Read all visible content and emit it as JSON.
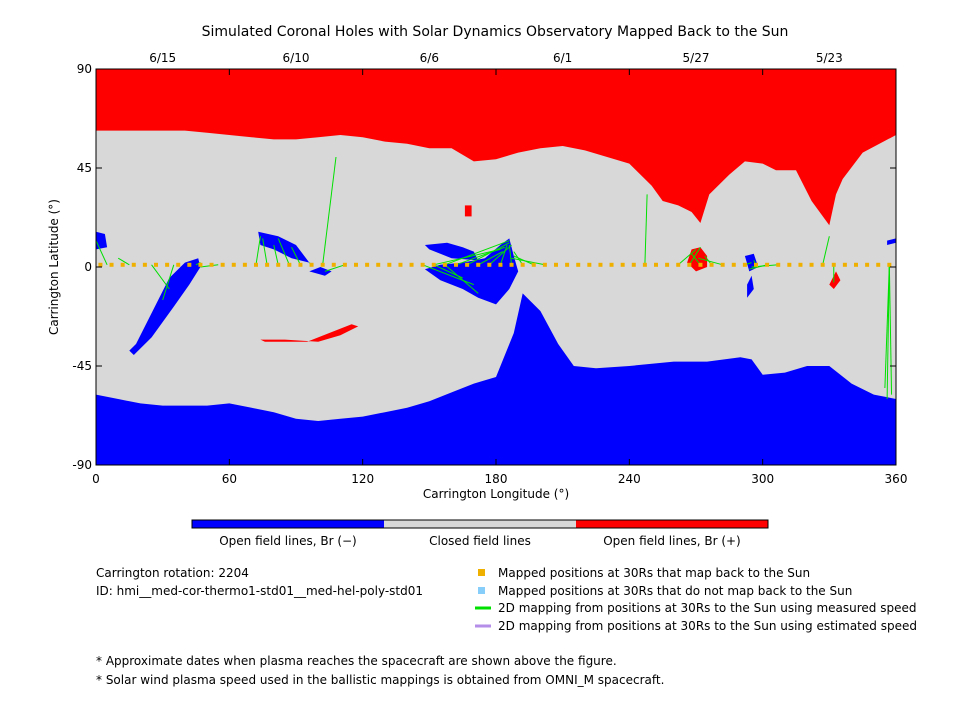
{
  "chart_data": {
    "type": "map",
    "title": "Simulated Coronal Holes with Solar Dynamics Observatory Mapped Back to the Sun",
    "xlabel": "Carrington Longitude (°)",
    "ylabel": "Carrington Latitude (°)",
    "xlim": [
      0,
      360
    ],
    "ylim": [
      -90,
      90
    ],
    "x_ticks": [
      "0",
      "60",
      "120",
      "180",
      "240",
      "300",
      "360"
    ],
    "x_tick_values": [
      0,
      60,
      120,
      180,
      240,
      300,
      360
    ],
    "y_ticks": [
      "90",
      "45",
      "0",
      "-45",
      "-90"
    ],
    "y_tick_values": [
      90,
      45,
      0,
      -45,
      -90
    ],
    "top_dates": [
      {
        "label": "6/15",
        "lon": 30
      },
      {
        "label": "6/10",
        "lon": 90
      },
      {
        "label": "6/6",
        "lon": 150
      },
      {
        "label": "6/1",
        "lon": 210
      },
      {
        "label": "5/27",
        "lon": 270
      },
      {
        "label": "5/23",
        "lon": 330
      }
    ],
    "colors": {
      "open_negative": "#0000ff",
      "closed": "#d8d8d8",
      "open_positive": "#ff0000",
      "mapped_back": "#f0b000",
      "not_mapped": "#87cefa",
      "measured_speed": "#00e000",
      "estimated_speed": "#b48ee8"
    },
    "colorbar": [
      {
        "label": "Open field lines, Br (−)",
        "color": "#0000ff"
      },
      {
        "label": "Closed field lines",
        "color": "#d8d8d8"
      },
      {
        "label": "Open field lines, Br (+)",
        "color": "#ff0000"
      }
    ],
    "north_boundary": [
      [
        0,
        62
      ],
      [
        10,
        62
      ],
      [
        20,
        62
      ],
      [
        30,
        62
      ],
      [
        40,
        62
      ],
      [
        50,
        61
      ],
      [
        60,
        60
      ],
      [
        70,
        59
      ],
      [
        80,
        58
      ],
      [
        90,
        58
      ],
      [
        100,
        59
      ],
      [
        110,
        60
      ],
      [
        120,
        59
      ],
      [
        130,
        57
      ],
      [
        140,
        56
      ],
      [
        150,
        54
      ],
      [
        160,
        54
      ],
      [
        170,
        48
      ],
      [
        180,
        49
      ],
      [
        190,
        52
      ],
      [
        200,
        54
      ],
      [
        210,
        55
      ],
      [
        220,
        53
      ],
      [
        230,
        50
      ],
      [
        240,
        47
      ],
      [
        250,
        37
      ],
      [
        255,
        30
      ],
      [
        262,
        28
      ],
      [
        268,
        25
      ],
      [
        272,
        20
      ],
      [
        276,
        33
      ],
      [
        285,
        42
      ],
      [
        292,
        48
      ],
      [
        300,
        47
      ],
      [
        306,
        44
      ],
      [
        315,
        44
      ],
      [
        322,
        30
      ],
      [
        330,
        19
      ],
      [
        333,
        33
      ],
      [
        336,
        40
      ],
      [
        345,
        52
      ],
      [
        360,
        60
      ]
    ],
    "south_boundary": [
      [
        0,
        -58
      ],
      [
        10,
        -60
      ],
      [
        20,
        -62
      ],
      [
        30,
        -63
      ],
      [
        40,
        -63
      ],
      [
        50,
        -63
      ],
      [
        60,
        -62
      ],
      [
        70,
        -64
      ],
      [
        80,
        -66
      ],
      [
        90,
        -69
      ],
      [
        100,
        -70
      ],
      [
        110,
        -69
      ],
      [
        120,
        -68
      ],
      [
        130,
        -66
      ],
      [
        140,
        -64
      ],
      [
        150,
        -61
      ],
      [
        160,
        -57
      ],
      [
        170,
        -53
      ],
      [
        180,
        -50
      ],
      [
        184,
        -40
      ],
      [
        188,
        -30
      ],
      [
        192,
        -12
      ],
      [
        200,
        -20
      ],
      [
        208,
        -35
      ],
      [
        215,
        -45
      ],
      [
        225,
        -46
      ],
      [
        240,
        -45
      ],
      [
        260,
        -43
      ],
      [
        275,
        -43
      ],
      [
        290,
        -41
      ],
      [
        295,
        -42
      ],
      [
        300,
        -49
      ],
      [
        310,
        -48
      ],
      [
        320,
        -45
      ],
      [
        330,
        -45
      ],
      [
        340,
        -53
      ],
      [
        350,
        -58
      ],
      [
        360,
        -60
      ]
    ],
    "holes": [
      {
        "sign": "negative",
        "points": [
          [
            15,
            -38
          ],
          [
            17,
            -40
          ],
          [
            25,
            -32
          ],
          [
            35,
            -18
          ],
          [
            42,
            -8
          ],
          [
            47,
            0
          ],
          [
            46,
            4
          ],
          [
            40,
            2
          ],
          [
            33,
            -5
          ],
          [
            28,
            -15
          ],
          [
            22,
            -27
          ],
          [
            18,
            -35
          ]
        ]
      },
      {
        "sign": "negative",
        "points": [
          [
            0,
            8
          ],
          [
            5,
            9
          ],
          [
            4,
            15
          ],
          [
            0,
            16
          ]
        ]
      },
      {
        "sign": "negative",
        "points": [
          [
            73,
            16
          ],
          [
            82,
            14
          ],
          [
            90,
            10
          ],
          [
            96,
            2
          ],
          [
            88,
            4
          ],
          [
            80,
            8
          ],
          [
            74,
            10
          ]
        ]
      },
      {
        "sign": "negative",
        "points": [
          [
            96,
            -2
          ],
          [
            103,
            -4
          ],
          [
            106,
            -2
          ],
          [
            101,
            0
          ]
        ]
      },
      {
        "sign": "negative",
        "points": [
          [
            148,
            10
          ],
          [
            158,
            11
          ],
          [
            165,
            9
          ],
          [
            170,
            7
          ],
          [
            172,
            3
          ],
          [
            160,
            4
          ],
          [
            150,
            8
          ]
        ]
      },
      {
        "sign": "negative",
        "points": [
          [
            148,
            -1
          ],
          [
            155,
            -6
          ],
          [
            165,
            -10
          ],
          [
            172,
            -14
          ],
          [
            180,
            -17
          ],
          [
            186,
            -10
          ],
          [
            190,
            -2
          ],
          [
            188,
            5
          ],
          [
            186,
            13
          ],
          [
            182,
            10
          ],
          [
            175,
            4
          ],
          [
            165,
            2
          ],
          [
            155,
            1
          ]
        ]
      },
      {
        "sign": "negative",
        "points": [
          [
            292,
            5
          ],
          [
            296,
            6
          ],
          [
            298,
            0
          ],
          [
            294,
            -2
          ]
        ]
      },
      {
        "sign": "negative",
        "points": [
          [
            293,
            -14
          ],
          [
            296,
            -10
          ],
          [
            295,
            -4
          ],
          [
            293,
            -8
          ]
        ]
      },
      {
        "sign": "negative",
        "points": [
          [
            356,
            10
          ],
          [
            360,
            11
          ],
          [
            360,
            13
          ],
          [
            356,
            12
          ]
        ]
      },
      {
        "sign": "positive",
        "points": [
          [
            74,
            -33
          ],
          [
            85,
            -33
          ],
          [
            100,
            -34
          ],
          [
            110,
            -31
          ],
          [
            118,
            -27
          ],
          [
            115,
            -26
          ],
          [
            105,
            -30
          ],
          [
            95,
            -34
          ],
          [
            85,
            -34
          ],
          [
            76,
            -34
          ]
        ]
      },
      {
        "sign": "positive",
        "points": [
          [
            268,
            8
          ],
          [
            272,
            9
          ],
          [
            275,
            5
          ],
          [
            275,
            0
          ],
          [
            270,
            -2
          ],
          [
            266,
            2
          ]
        ]
      },
      {
        "sign": "positive",
        "points": [
          [
            332,
            -10
          ],
          [
            335,
            -6
          ],
          [
            333,
            -2
          ],
          [
            330,
            -8
          ]
        ]
      },
      {
        "sign": "positive",
        "points": [
          [
            166,
            23
          ],
          [
            169,
            23
          ],
          [
            169,
            28
          ],
          [
            166,
            28
          ]
        ]
      }
    ],
    "mapped_points": [
      [
        2,
        1
      ],
      [
        7,
        1
      ],
      [
        12,
        1
      ],
      [
        17,
        1
      ],
      [
        22,
        1
      ],
      [
        27,
        1
      ],
      [
        32,
        1
      ],
      [
        37,
        1
      ],
      [
        42,
        1
      ],
      [
        47,
        1
      ],
      [
        52,
        1
      ],
      [
        57,
        1
      ],
      [
        62,
        1
      ],
      [
        67,
        1
      ],
      [
        72,
        1
      ],
      [
        77,
        1
      ],
      [
        82,
        1
      ],
      [
        87,
        1
      ],
      [
        92,
        1
      ],
      [
        97,
        1
      ],
      [
        102,
        1
      ],
      [
        107,
        1
      ],
      [
        112,
        1
      ],
      [
        117,
        1
      ],
      [
        122,
        1
      ],
      [
        127,
        1
      ],
      [
        132,
        1
      ],
      [
        137,
        1
      ],
      [
        142,
        1
      ],
      [
        147,
        1
      ],
      [
        152,
        1
      ],
      [
        157,
        1
      ],
      [
        162,
        1
      ],
      [
        167,
        1
      ],
      [
        172,
        1
      ],
      [
        177,
        1
      ],
      [
        182,
        1
      ],
      [
        187,
        1
      ],
      [
        192,
        1
      ],
      [
        197,
        1
      ],
      [
        202,
        1
      ],
      [
        207,
        1
      ],
      [
        212,
        1
      ],
      [
        217,
        1
      ],
      [
        222,
        1
      ],
      [
        227,
        1
      ],
      [
        232,
        1
      ],
      [
        237,
        1
      ],
      [
        242,
        1
      ],
      [
        247,
        1
      ],
      [
        252,
        1
      ],
      [
        257,
        1
      ],
      [
        262,
        1
      ],
      [
        267,
        1
      ],
      [
        272,
        1
      ],
      [
        277,
        1
      ],
      [
        282,
        1
      ],
      [
        287,
        1
      ],
      [
        292,
        1
      ],
      [
        297,
        1
      ],
      [
        302,
        1
      ],
      [
        307,
        1
      ],
      [
        312,
        1
      ],
      [
        317,
        1
      ],
      [
        322,
        1
      ],
      [
        327,
        1
      ],
      [
        332,
        1
      ],
      [
        337,
        1
      ],
      [
        342,
        1
      ],
      [
        347,
        1
      ],
      [
        352,
        1
      ],
      [
        357,
        1
      ]
    ],
    "field_lines": [
      [
        5,
        1,
        0,
        12
      ],
      [
        15,
        1,
        10,
        4
      ],
      [
        25,
        1,
        33,
        -10
      ],
      [
        35,
        1,
        30,
        -15
      ],
      [
        45,
        1,
        47,
        2
      ],
      [
        55,
        1,
        47,
        0
      ],
      [
        72,
        1,
        74,
        14
      ],
      [
        77,
        1,
        75,
        13
      ],
      [
        82,
        1,
        80,
        10
      ],
      [
        87,
        1,
        82,
        13
      ],
      [
        92,
        1,
        88,
        9
      ],
      [
        97,
        1,
        96,
        2
      ],
      [
        102,
        1,
        108,
        50
      ],
      [
        112,
        1,
        103,
        -2
      ],
      [
        152,
        1,
        182,
        8
      ],
      [
        157,
        1,
        186,
        12
      ],
      [
        162,
        1,
        184,
        9
      ],
      [
        167,
        1,
        186,
        11
      ],
      [
        172,
        1,
        183,
        7
      ],
      [
        177,
        1,
        187,
        10
      ],
      [
        182,
        1,
        185,
        10
      ],
      [
        187,
        1,
        186,
        10
      ],
      [
        192,
        1,
        188,
        7
      ],
      [
        197,
        1,
        188,
        5
      ],
      [
        202,
        1,
        187,
        4
      ],
      [
        147,
        1,
        170,
        -8
      ],
      [
        152,
        1,
        165,
        -5
      ],
      [
        157,
        1,
        172,
        -12
      ],
      [
        247,
        1,
        248,
        33
      ],
      [
        262,
        1,
        270,
        8
      ],
      [
        267,
        1,
        272,
        9
      ],
      [
        272,
        1,
        268,
        6
      ],
      [
        277,
        1,
        274,
        5
      ],
      [
        282,
        1,
        271,
        4
      ],
      [
        292,
        1,
        295,
        2
      ],
      [
        297,
        1,
        296,
        3
      ],
      [
        302,
        1,
        294,
        -1
      ],
      [
        307,
        1,
        295,
        0
      ],
      [
        327,
        1,
        330,
        14
      ],
      [
        332,
        1,
        332,
        -7
      ],
      [
        357,
        1,
        356,
        -60
      ],
      [
        357,
        1,
        355,
        -55
      ],
      [
        357,
        1,
        358,
        -58
      ]
    ]
  },
  "info": {
    "rotation": "Carrington rotation: 2204",
    "model_id": "ID: hmi__med-cor-thermo1-std01__med-hel-poly-std01"
  },
  "legend": {
    "mapped_back": "Mapped positions at 30Rs that map back to the Sun",
    "not_mapped": "Mapped positions at 30Rs that do not map back to the Sun",
    "measured_speed": "2D mapping from positions at 30Rs to the Sun using measured speed",
    "estimated_speed": "2D mapping from positions at 30Rs to the Sun using estimated speed"
  },
  "footnotes": {
    "dates_note": "* Approximate dates when plasma reaches the spacecraft are shown above the figure.",
    "speed_note": "* Solar wind plasma speed used in the ballistic mappings is obtained from OMNI_M spacecraft."
  }
}
